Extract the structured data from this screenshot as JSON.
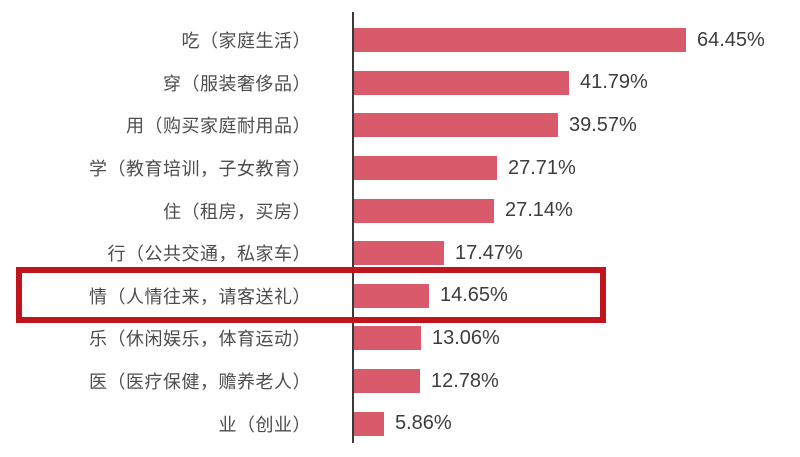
{
  "chart_data": {
    "type": "bar",
    "orientation": "horizontal",
    "title": "",
    "xlabel": "",
    "ylabel": "",
    "xlim": [
      0,
      70
    ],
    "grid": false,
    "legend": null,
    "categories": [
      "吃（家庭生活）",
      "穿（服装奢侈品）",
      "用（购买家庭耐用品）",
      "学（教育培训，子女教育）",
      "住（租房，买房）",
      "行（公共交通，私家车）",
      "情（人情往来，请客送礼）",
      "乐（休闲娱乐，体育运动）",
      "医（医疗保健，赡养老人）",
      "业（创业）"
    ],
    "values": [
      64.45,
      41.79,
      39.57,
      27.71,
      27.14,
      17.47,
      14.65,
      13.06,
      12.78,
      5.86
    ],
    "value_labels": [
      "64.45%",
      "41.79%",
      "39.57%",
      "27.71%",
      "27.14%",
      "17.47%",
      "14.65%",
      "13.06%",
      "12.78%",
      "5.86%"
    ],
    "colors": {
      "bar": "#d95a6a",
      "axis_line": "#3a3a3a",
      "category_label": "#4d4d4d",
      "value_label": "#3d3d3d",
      "highlight_box": "#c0151c"
    },
    "highlight": {
      "index": 6,
      "category": "情（人情往来，请客送礼）",
      "value_label": "14.65%"
    }
  }
}
